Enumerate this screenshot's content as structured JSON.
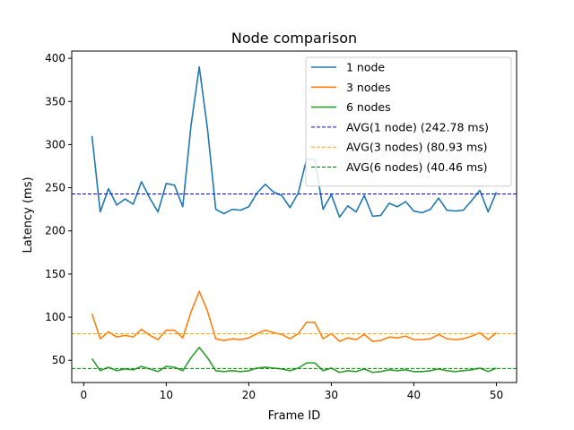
{
  "chart_data": {
    "type": "line",
    "title": "Node comparison",
    "xlabel": "Frame ID",
    "ylabel": "Latency (ms)",
    "xlim": [
      -1.45,
      52.45
    ],
    "ylim": [
      24.3,
      408.4
    ],
    "xticks": [
      0,
      10,
      20,
      30,
      40,
      50
    ],
    "yticks": [
      50,
      100,
      150,
      200,
      250,
      300,
      350,
      400
    ],
    "legend_position": "top-right",
    "grid": false,
    "x": [
      1,
      2,
      3,
      4,
      5,
      6,
      7,
      8,
      9,
      10,
      11,
      12,
      13,
      14,
      15,
      16,
      17,
      18,
      19,
      20,
      21,
      22,
      23,
      24,
      25,
      26,
      27,
      28,
      29,
      30,
      31,
      32,
      33,
      34,
      35,
      36,
      37,
      38,
      39,
      40,
      41,
      42,
      43,
      44,
      45,
      46,
      47,
      48,
      49,
      50
    ],
    "series": [
      {
        "name": "1 node",
        "color": "#1f77b4",
        "style": "solid",
        "values": [
          310,
          222,
          249,
          230,
          237,
          231,
          257,
          238,
          222,
          255,
          253,
          228,
          322,
          390,
          318,
          225,
          220,
          225,
          224,
          228,
          244,
          254,
          245,
          241,
          227,
          244,
          283,
          283,
          225,
          242,
          216,
          229,
          222,
          241,
          217,
          218,
          232,
          228,
          234,
          223,
          221,
          225,
          238,
          224,
          223,
          224,
          235,
          247,
          222,
          245
        ]
      },
      {
        "name": "3 nodes",
        "color": "#ff7f0e",
        "style": "solid",
        "values": [
          104,
          75,
          83,
          77,
          79,
          77,
          86,
          79,
          74,
          85,
          85,
          76,
          106,
          130,
          107,
          75,
          73,
          75,
          74,
          76,
          81,
          85,
          82,
          80,
          75,
          81,
          94,
          94,
          75,
          81,
          72,
          76,
          74,
          80,
          72,
          73,
          77,
          76,
          78,
          74,
          74,
          75,
          80,
          75,
          74,
          75,
          78,
          82,
          74,
          82
        ]
      },
      {
        "name": "6 nodes",
        "color": "#2ca02c",
        "style": "solid",
        "values": [
          52,
          38,
          42,
          38,
          40,
          39,
          43,
          40,
          37,
          43,
          42,
          38,
          53,
          65,
          53,
          38,
          37,
          38,
          37,
          38,
          41,
          42,
          41,
          40,
          38,
          41,
          47,
          47,
          38,
          41,
          36,
          38,
          37,
          40,
          36,
          37,
          39,
          38,
          39,
          37,
          37,
          38,
          40,
          38,
          37,
          38,
          39,
          41,
          37,
          41
        ]
      },
      {
        "name": "AVG(1 node) (242.78 ms)",
        "color": "#0000ff",
        "style": "dashed",
        "constant": 242.78
      },
      {
        "name": "AVG(3 nodes) (80.93 ms)",
        "color": "#ffa500",
        "style": "dashed",
        "constant": 80.93
      },
      {
        "name": "AVG(6 nodes) (40.46 ms)",
        "color": "#008000",
        "style": "dashed",
        "constant": 40.46
      }
    ]
  }
}
